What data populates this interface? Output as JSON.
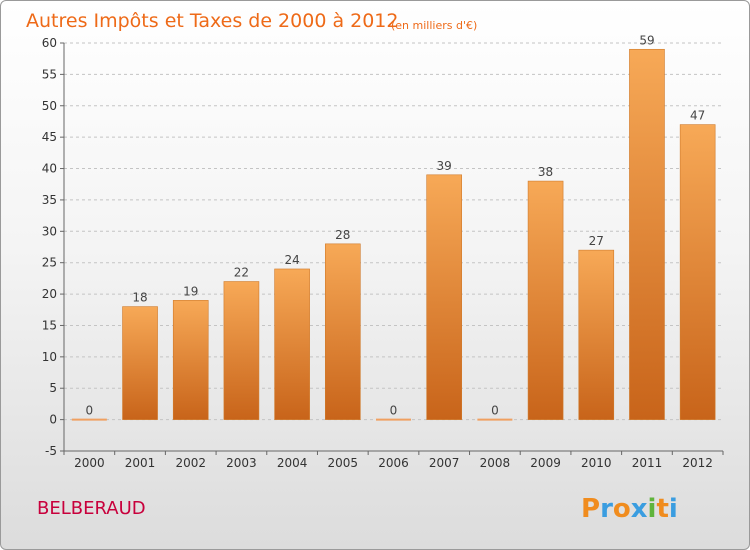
{
  "chart_data": {
    "type": "bar",
    "title": "Autres Impôts et Taxes de 2000 à 2012",
    "subtitle": "(en milliers d'€)",
    "categories": [
      "2000",
      "2001",
      "2002",
      "2003",
      "2004",
      "2005",
      "2006",
      "2007",
      "2008",
      "2009",
      "2010",
      "2011",
      "2012"
    ],
    "values": [
      0,
      18,
      19,
      22,
      24,
      28,
      0,
      39,
      0,
      38,
      27,
      59,
      47
    ],
    "data_labels": [
      "0",
      "18",
      "19",
      "22",
      "24",
      "28",
      "0",
      "39",
      "0",
      "38",
      "27",
      "59",
      "47"
    ],
    "yticks": [
      -5,
      0,
      5,
      10,
      15,
      20,
      25,
      30,
      35,
      40,
      45,
      50,
      55,
      60
    ],
    "ylim": [
      -5,
      60
    ],
    "xlabel": "",
    "ylabel": "",
    "grid": "horizontal dashed",
    "colors": {
      "bar_light": "#f7a957",
      "bar_dark": "#c8641a",
      "zero_bar": "#f0a060"
    }
  },
  "footer": {
    "commune": "BELBERAUD",
    "logo_letters": [
      "P",
      "r",
      "o",
      "x",
      "i",
      "t",
      "i"
    ],
    "logo_colors": [
      "#f08c1e",
      "#3a9de0",
      "#f08c1e",
      "#3a9de0",
      "#5fb43c",
      "#f08c1e",
      "#3a9de0"
    ]
  }
}
